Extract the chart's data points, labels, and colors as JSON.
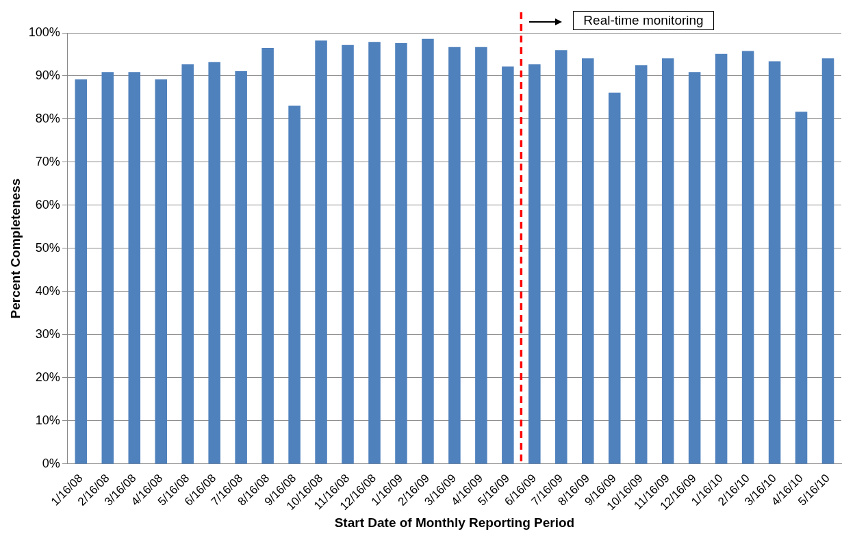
{
  "chart_data": {
    "type": "bar",
    "xlabel": "Start Date of Monthly Reporting Period",
    "ylabel": "Percent Completeness",
    "categories": [
      "1/16/08",
      "2/16/08",
      "3/16/08",
      "4/16/08",
      "5/16/08",
      "6/16/08",
      "7/16/08",
      "8/16/08",
      "9/16/08",
      "10/16/08",
      "11/16/08",
      "12/16/08",
      "1/16/09",
      "2/16/09",
      "3/16/09",
      "4/16/09",
      "5/16/09",
      "6/16/09",
      "7/16/09",
      "8/16/09",
      "9/16/09",
      "10/16/09",
      "11/16/09",
      "12/16/09",
      "1/16/10",
      "2/16/10",
      "3/16/10",
      "4/16/10",
      "5/16/10"
    ],
    "values": [
      89.2,
      90.9,
      90.9,
      89.2,
      92.7,
      93.2,
      91.1,
      96.5,
      83.1,
      98.2,
      97.2,
      97.9,
      97.6,
      98.6,
      96.7,
      96.7,
      92.2,
      92.7,
      96.0,
      94.1,
      86.1,
      92.5,
      94.1,
      90.9,
      95.1,
      95.8,
      93.4,
      81.7,
      94.1
    ],
    "color": "#4f81bd",
    "ylim": [
      0,
      100
    ],
    "yticks": [
      {
        "value": 0,
        "label": "0%"
      },
      {
        "value": 10,
        "label": "10%"
      },
      {
        "value": 20,
        "label": "20%"
      },
      {
        "value": 30,
        "label": "30%"
      },
      {
        "value": 40,
        "label": "40%"
      },
      {
        "value": 50,
        "label": "50%"
      },
      {
        "value": 60,
        "label": "60%"
      },
      {
        "value": 70,
        "label": "70%"
      },
      {
        "value": 80,
        "label": "80%"
      },
      {
        "value": 90,
        "label": "90%"
      },
      {
        "value": 100,
        "label": "100%"
      }
    ],
    "grid": "y",
    "legend": false,
    "ref_lines": [
      {
        "axis": "x",
        "value": "6/16/09",
        "color": "#ff0000",
        "line_style": "dashed"
      }
    ],
    "annotations": [
      "Real-time monitoring"
    ]
  }
}
